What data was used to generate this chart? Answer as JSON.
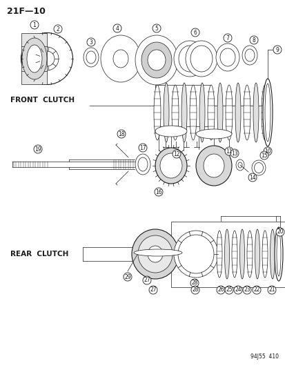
{
  "title": "21F—10",
  "watermark": "94J55  410",
  "front_clutch_label": "FRONT  CLUTCH",
  "rear_clutch_label": "REAR  CLUTCH",
  "bg_color": "#ffffff",
  "line_color": "#1a1a1a"
}
